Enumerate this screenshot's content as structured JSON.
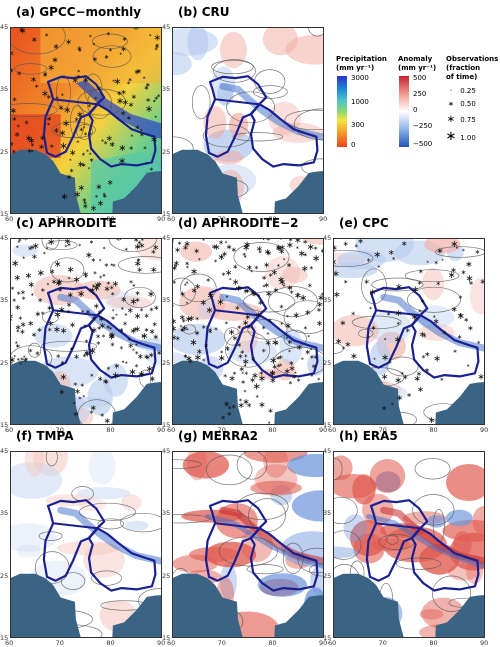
{
  "panels": [
    {
      "id": "a",
      "title": "(a) GPCC−monthly",
      "kind": "precip",
      "obs": "dense"
    },
    {
      "id": "b",
      "title": "(b) CRU",
      "kind": "anomaly",
      "obs": "none",
      "tone": "light-red"
    },
    {
      "id": "c",
      "title": "(c) APHRODITE",
      "kind": "anomaly",
      "obs": "very-dense",
      "tone": "light-blue"
    },
    {
      "id": "d",
      "title": "(d) APHRODITE−2",
      "kind": "anomaly",
      "obs": "very-dense",
      "tone": "light-blue"
    },
    {
      "id": "e",
      "title": "(e) CPC",
      "kind": "anomaly",
      "obs": "medium",
      "tone": "light-blue"
    },
    {
      "id": "f",
      "title": "(f) TMPA",
      "kind": "anomaly",
      "obs": "none",
      "tone": "faint"
    },
    {
      "id": "g",
      "title": "(g) MERRA2",
      "kind": "anomaly",
      "obs": "none",
      "tone": "red"
    },
    {
      "id": "h",
      "title": "(h) ERA5",
      "kind": "anomaly",
      "obs": "none",
      "tone": "red"
    }
  ],
  "axes": {
    "lon_ticks": [
      "60",
      "70",
      "80",
      "90"
    ],
    "lat_ticks": [
      "45",
      "35",
      "25",
      "15"
    ]
  },
  "legend": {
    "precip": {
      "title_line1": "Precipitation",
      "title_line2": "(mm yr⁻¹)",
      "labels": [
        "3000",
        "1000",
        "300",
        "0"
      ]
    },
    "anomaly": {
      "title_line1": "Anomaly",
      "title_line2": "(mm yr⁻¹)",
      "labels": [
        "500",
        "250",
        "0",
        "−250",
        "−500"
      ]
    },
    "observations": {
      "title_lines": [
        "Observations",
        "(fraction",
        "of time)"
      ],
      "items": [
        {
          "symbol": "⋅",
          "label": "0.25"
        },
        {
          "symbol": "∗",
          "label": "0.50"
        },
        {
          "symbol": "∗",
          "label": "0.75"
        },
        {
          "symbol": "∗",
          "label": "1.00"
        }
      ]
    }
  },
  "colors": {
    "ocean": "#3b6384",
    "boundary": "#1a2090",
    "contour": "#444444",
    "precip_scale": [
      "#2b34c8",
      "#1e8fd6",
      "#7fd67a",
      "#f3e640",
      "#f39a2a",
      "#e84422"
    ],
    "anomaly_scale": [
      "#c0232f",
      "#ef9a8e",
      "#ffffff",
      "#8eb3e6",
      "#2354b8"
    ]
  }
}
